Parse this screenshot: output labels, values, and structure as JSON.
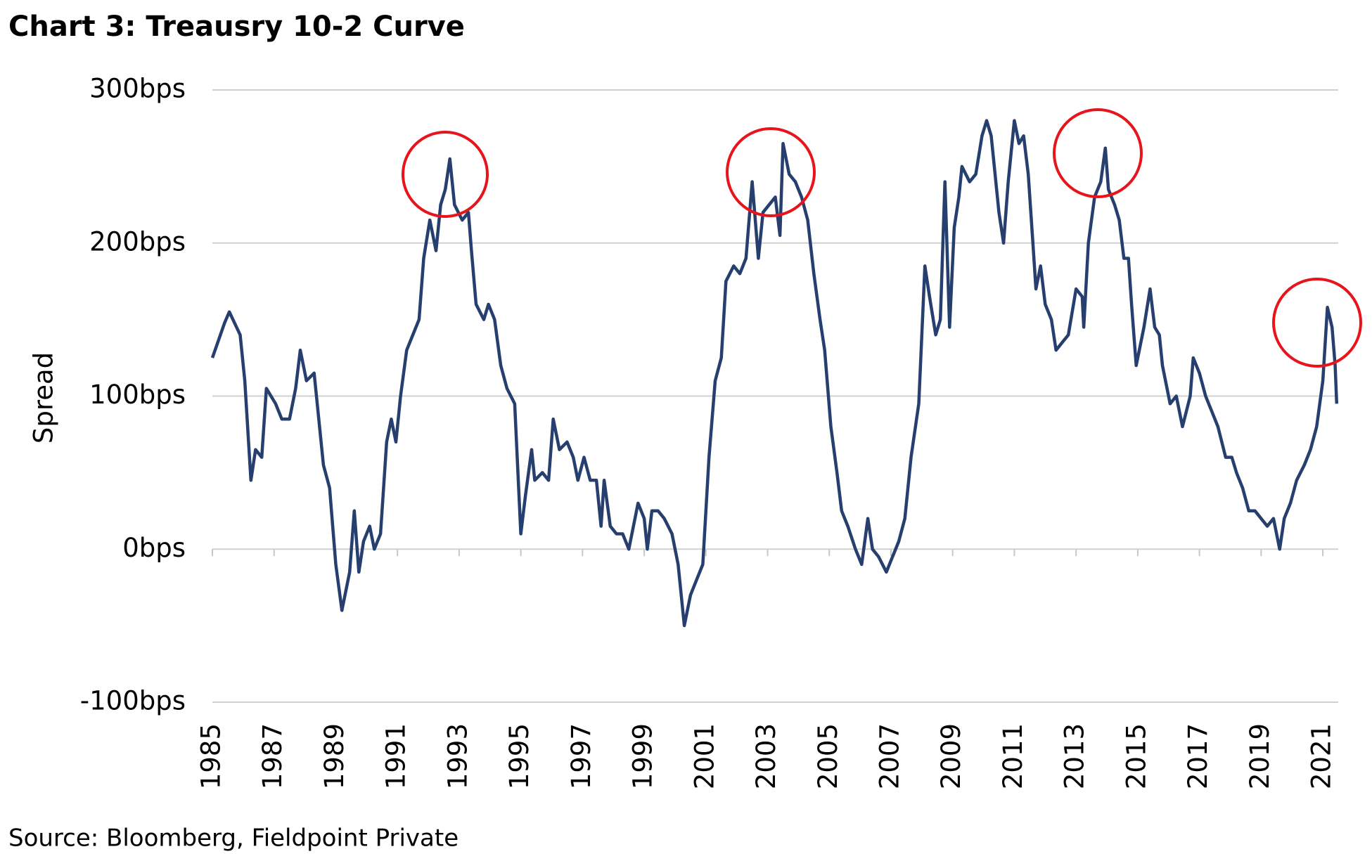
{
  "chart_data": {
    "type": "line",
    "title": "Chart 3: Treausry 10-2 Curve",
    "y_label": "Spread",
    "source": "Source: Bloomberg, Fieldpoint Private",
    "xlim": [
      1985,
      2021.5
    ],
    "xticks": [
      1985,
      1987,
      1989,
      1991,
      1993,
      1995,
      1997,
      1999,
      2001,
      2003,
      2005,
      2007,
      2009,
      2011,
      2013,
      2015,
      2017,
      2019,
      2021
    ],
    "ylim": [
      -100,
      300
    ],
    "yticks": [
      {
        "value": -100,
        "label": "-100bps"
      },
      {
        "value": 0,
        "label": "0bps"
      },
      {
        "value": 100,
        "label": "100bps"
      },
      {
        "value": 200,
        "label": "200bps"
      },
      {
        "value": 300,
        "label": "300bps"
      }
    ],
    "grid": true,
    "series": [
      {
        "name": "Spread",
        "color": "#263f6e",
        "x": [
          1985.0,
          1985.4,
          1985.55,
          1985.9,
          1986.05,
          1986.25,
          1986.4,
          1986.6,
          1986.75,
          1987.05,
          1987.25,
          1987.5,
          1987.7,
          1987.85,
          1988.05,
          1988.3,
          1988.6,
          1988.8,
          1989.0,
          1989.2,
          1989.45,
          1989.6,
          1989.75,
          1989.9,
          1990.1,
          1990.25,
          1990.45,
          1990.65,
          1990.8,
          1990.95,
          1991.1,
          1991.3,
          1991.5,
          1991.7,
          1991.85,
          1992.05,
          1992.25,
          1992.4,
          1992.55,
          1992.7,
          1992.85,
          1993.1,
          1993.3,
          1993.4,
          1993.55,
          1993.8,
          1993.95,
          1994.15,
          1994.35,
          1994.55,
          1994.8,
          1995.0,
          1995.15,
          1995.35,
          1995.45,
          1995.7,
          1995.9,
          1996.05,
          1996.25,
          1996.5,
          1996.7,
          1996.85,
          1997.05,
          1997.25,
          1997.45,
          1997.6,
          1997.7,
          1997.9,
          1998.1,
          1998.3,
          1998.5,
          1998.8,
          1999.0,
          1999.1,
          1999.25,
          1999.45,
          1999.65,
          1999.9,
          2000.1,
          2000.3,
          2000.5,
          2000.7,
          2000.9,
          2001.1,
          2001.3,
          2001.5,
          2001.65,
          2001.9,
          2002.1,
          2002.3,
          2002.5,
          2002.7,
          2002.85,
          2003.05,
          2003.25,
          2003.4,
          2003.5,
          2003.7,
          2003.9,
          2004.1,
          2004.3,
          2004.5,
          2004.7,
          2004.85,
          2005.05,
          2005.25,
          2005.4,
          2005.6,
          2005.85,
          2006.05,
          2006.25,
          2006.4,
          2006.6,
          2006.85,
          2007.05,
          2007.25,
          2007.45,
          2007.65,
          2007.9,
          2008.1,
          2008.25,
          2008.45,
          2008.6,
          2008.75,
          2008.9,
          2009.05,
          2009.2,
          2009.3,
          2009.55,
          2009.75,
          2009.95,
          2010.1,
          2010.25,
          2010.4,
          2010.5,
          2010.65,
          2010.8,
          2011.0,
          2011.15,
          2011.3,
          2011.45,
          2011.6,
          2011.7,
          2011.85,
          2012.0,
          2012.2,
          2012.35,
          2012.55,
          2012.75,
          2013.0,
          2013.2,
          2013.25,
          2013.4,
          2013.6,
          2013.8,
          2013.95,
          2014.05,
          2014.25,
          2014.4,
          2014.55,
          2014.7,
          2014.8,
          2014.95,
          2015.2,
          2015.4,
          2015.55,
          2015.7,
          2015.8,
          2016.05,
          2016.25,
          2016.45,
          2016.7,
          2016.8,
          2017.0,
          2017.2,
          2017.4,
          2017.6,
          2017.85,
          2018.05,
          2018.2,
          2018.4,
          2018.6,
          2018.8,
          2019.0,
          2019.2,
          2019.4,
          2019.6,
          2019.75,
          2019.95,
          2020.15,
          2020.4,
          2020.6,
          2020.8,
          2021.0,
          2021.15,
          2021.3,
          2021.4,
          2021.45
        ],
        "values": [
          125,
          148,
          155,
          140,
          110,
          45,
          65,
          60,
          105,
          95,
          85,
          85,
          105,
          130,
          110,
          115,
          55,
          40,
          -10,
          -40,
          -15,
          25,
          -15,
          5,
          15,
          0,
          10,
          70,
          85,
          70,
          100,
          130,
          140,
          150,
          190,
          215,
          195,
          225,
          235,
          255,
          225,
          215,
          220,
          195,
          160,
          150,
          160,
          150,
          120,
          105,
          95,
          10,
          35,
          65,
          45,
          50,
          45,
          85,
          65,
          70,
          60,
          45,
          60,
          45,
          45,
          15,
          45,
          15,
          10,
          10,
          0,
          30,
          20,
          0,
          25,
          25,
          20,
          10,
          -10,
          -50,
          -30,
          -20,
          -10,
          60,
          110,
          125,
          175,
          185,
          180,
          190,
          240,
          190,
          220,
          225,
          230,
          205,
          265,
          245,
          240,
          230,
          215,
          180,
          150,
          130,
          80,
          50,
          25,
          15,
          0,
          -10,
          20,
          0,
          -5,
          -15,
          -5,
          5,
          20,
          60,
          95,
          185,
          165,
          140,
          150,
          240,
          145,
          210,
          230,
          250,
          240,
          245,
          270,
          280,
          270,
          240,
          220,
          200,
          240,
          280,
          265,
          270,
          245,
          200,
          170,
          185,
          160,
          150,
          130,
          135,
          140,
          170,
          165,
          145,
          200,
          230,
          240,
          262,
          235,
          225,
          215,
          190,
          190,
          160,
          120,
          145,
          170,
          145,
          140,
          120,
          95,
          100,
          80,
          100,
          125,
          115,
          100,
          90,
          80,
          60,
          60,
          50,
          40,
          25,
          25,
          20,
          15,
          20,
          0,
          20,
          30,
          45,
          55,
          65,
          80,
          110,
          158,
          145,
          120,
          95
        ]
      }
    ]
  }
}
